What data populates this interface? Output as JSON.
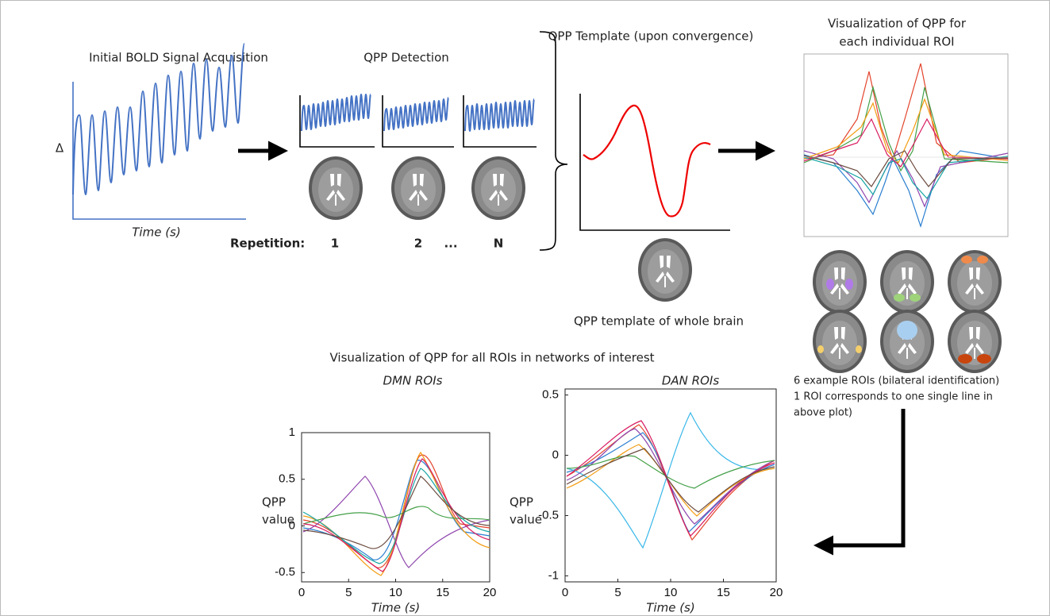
{
  "acquisition": {
    "title": "Initial BOLD Signal Acquisition",
    "y_label": "Δ",
    "x_label": "Time (s)"
  },
  "detection": {
    "title": "QPP Detection",
    "repetition_label": "Repetition:",
    "repetitions": [
      "1",
      "2",
      "...",
      "N"
    ]
  },
  "template": {
    "title": "QPP Template (upon convergence)",
    "caption": "QPP template of whole brain"
  },
  "roi": {
    "title_lines": [
      "Visualization of QPP for",
      "each individual ROI"
    ],
    "caption_lines": [
      "6 example ROIs (bilateral identification)",
      "1 ROI corresponds to one single line in",
      "above plot)"
    ]
  },
  "networks": {
    "title": "Visualization of QPP for all ROIs in networks of interest",
    "charts": [
      {
        "title": "DMN ROIs",
        "y_label_lines": [
          "QPP",
          "value"
        ],
        "x_label": "Time (s)",
        "xlim": [
          0,
          20
        ],
        "xticks": [
          0,
          5,
          10,
          15,
          20
        ],
        "ylim": [
          -0.6,
          1
        ],
        "yticks": [
          -0.5,
          0,
          0.5,
          1
        ]
      },
      {
        "title": "DAN ROIs",
        "y_label_lines": [
          "QPP",
          "value"
        ],
        "x_label": "Time (s)",
        "xlim": [
          0,
          20
        ],
        "xticks": [
          0,
          5,
          10,
          15,
          20
        ],
        "ylim": [
          -1.05,
          0.55
        ],
        "yticks": [
          -1,
          -0.5,
          0,
          0.5
        ]
      }
    ]
  }
}
